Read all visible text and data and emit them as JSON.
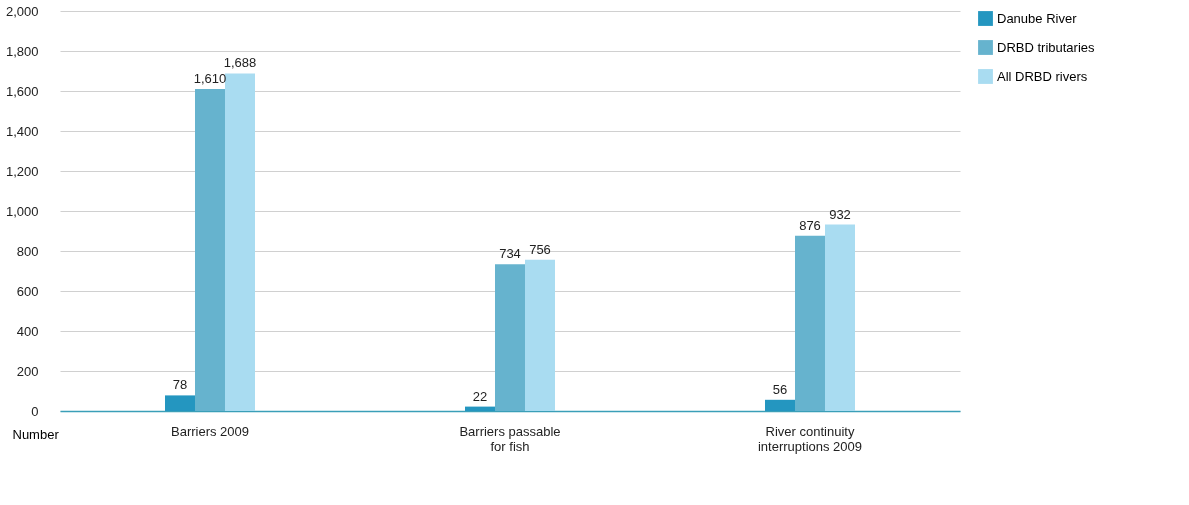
{
  "chart_data": {
    "type": "bar",
    "ylabel": "Number",
    "categories": [
      "Barriers 2009",
      "Barriers passable for fish",
      "River continuity interruptions 2009"
    ],
    "series": [
      {
        "name": "Danube River",
        "color": "#2496c0",
        "values": [
          78,
          22,
          56
        ],
        "value_labels": [
          "78",
          "22",
          "56"
        ]
      },
      {
        "name": "DRBD tributaries",
        "color": "#66b3ce",
        "values": [
          1610,
          734,
          876
        ],
        "value_labels": [
          "1,610",
          "734",
          "876"
        ]
      },
      {
        "name": "All DRBD rivers",
        "color": "#a9dcf1",
        "values": [
          1688,
          756,
          932
        ],
        "value_labels": [
          "1,688",
          "756",
          "932"
        ]
      }
    ],
    "ylim": [
      0,
      2000
    ],
    "yticks": [
      {
        "value": 0,
        "label": "0"
      },
      {
        "value": 200,
        "label": "200"
      },
      {
        "value": 400,
        "label": "400"
      },
      {
        "value": 600,
        "label": "600"
      },
      {
        "value": 800,
        "label": "800"
      },
      {
        "value": 1000,
        "label": "1,000"
      },
      {
        "value": 1200,
        "label": "1,200"
      },
      {
        "value": 1400,
        "label": "1,400"
      },
      {
        "value": 1600,
        "label": "1,600"
      },
      {
        "value": 1800,
        "label": "1,800"
      },
      {
        "value": 2000,
        "label": "2,000"
      }
    ],
    "grid": "y",
    "legend": "top right"
  }
}
